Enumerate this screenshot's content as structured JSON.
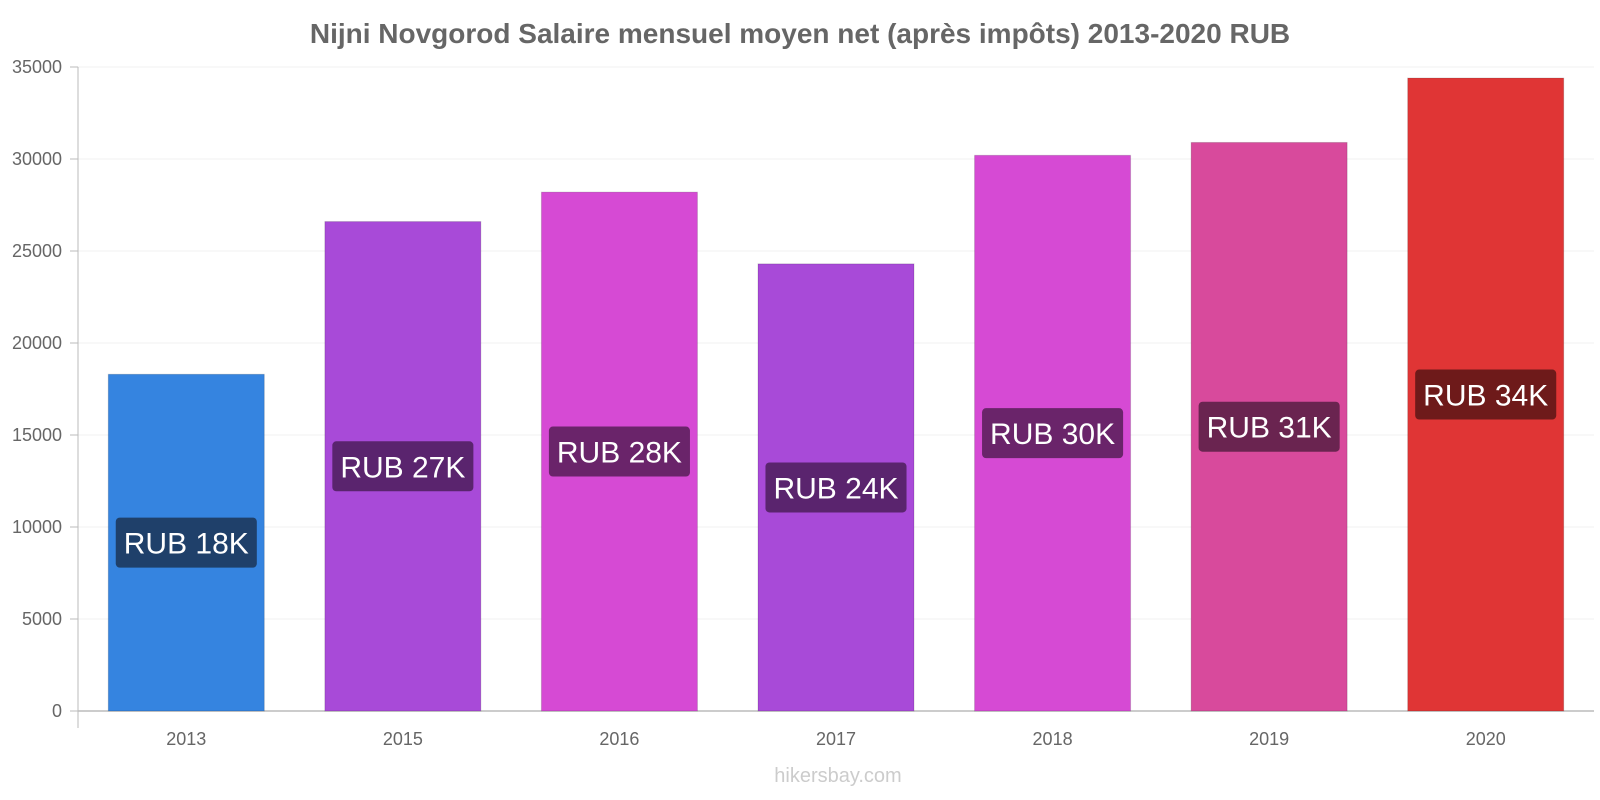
{
  "chart_data": {
    "type": "bar",
    "title": "Nijni Novgorod Salaire mensuel moyen net (après impôts) 2013-2020 RUB",
    "xlabel": "",
    "ylabel": "",
    "categories": [
      "2013",
      "2015",
      "2016",
      "2017",
      "2018",
      "2019",
      "2020"
    ],
    "values": [
      18300,
      26600,
      28200,
      24300,
      30200,
      30900,
      34400
    ],
    "data_labels": [
      "RUB 18K",
      "RUB 27K",
      "RUB 28K",
      "RUB 24K",
      "RUB 30K",
      "RUB 31K",
      "RUB 34K"
    ],
    "ylim": [
      0,
      35000
    ],
    "yticks": [
      0,
      5000,
      10000,
      15000,
      20000,
      25000,
      30000,
      35000
    ],
    "grid": true,
    "legend": "none",
    "colors": [
      "#3584e0",
      "#a84ad8",
      "#d64ad4",
      "#a84ad8",
      "#d64ad4",
      "#d84a9c",
      "#e03535"
    ],
    "label_box_colors": [
      "#1f406a",
      "#5a246e",
      "#6a246a",
      "#5a246e",
      "#6a246a",
      "#6a2450",
      "#6e1a1a"
    ]
  },
  "watermark": "hikersbay.com"
}
